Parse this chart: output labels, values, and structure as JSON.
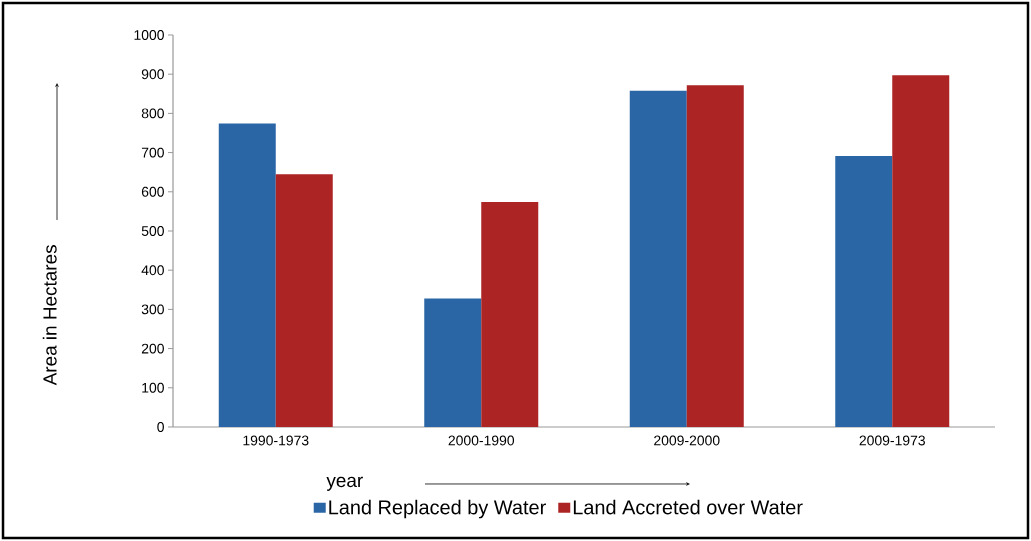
{
  "chart_data": {
    "type": "bar",
    "xlabel": "year",
    "ylabel": "Area in Hectares",
    "categories": [
      "1990-1973",
      "2000-1990",
      "2009-2000",
      "2009-1973"
    ],
    "series": [
      {
        "name": "Land Replaced by Water",
        "color": "#2a66a5",
        "values": [
          774,
          328,
          858,
          691
        ]
      },
      {
        "name": "Land Accreted over Water",
        "color": "#ac2424",
        "values": [
          645,
          574,
          872,
          897
        ]
      }
    ],
    "ylim": [
      0,
      1000
    ],
    "yticks": [
      0,
      100,
      200,
      300,
      400,
      500,
      600,
      700,
      800,
      900,
      1000
    ],
    "legend": "bottom"
  }
}
